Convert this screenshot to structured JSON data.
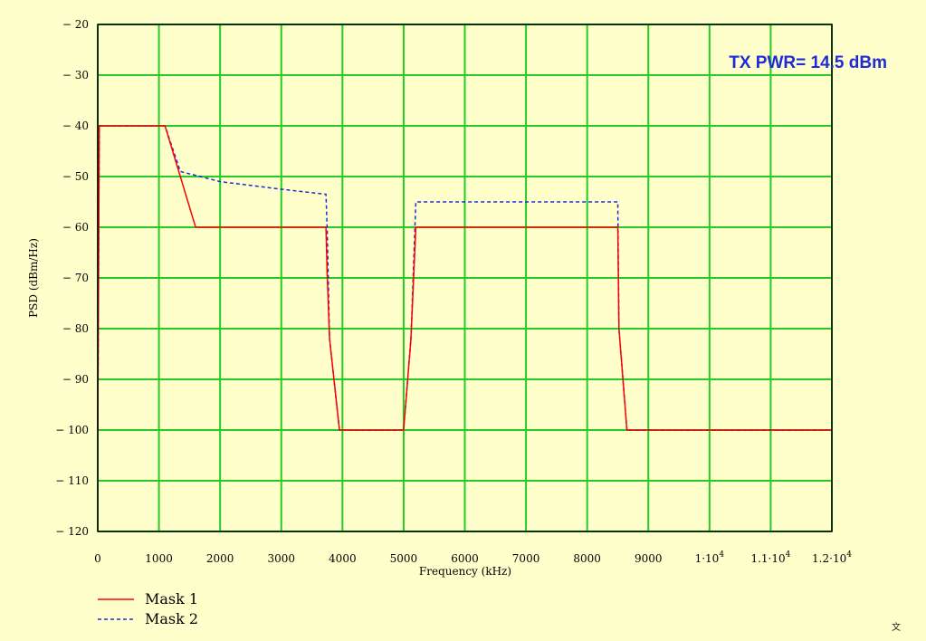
{
  "chart_data": {
    "type": "line",
    "xlabel": "Frequency (kHz)",
    "ylabel": "PSD (dBm/Hz)",
    "xlim": [
      0,
      12000
    ],
    "ylim": [
      -120,
      -20
    ],
    "x_ticks": [
      0,
      1000,
      2000,
      3000,
      4000,
      5000,
      6000,
      7000,
      8000,
      9000,
      10000,
      11000,
      12000
    ],
    "x_tick_labels": [
      "0",
      "1000",
      "2000",
      "3000",
      "4000",
      "5000",
      "6000",
      "7000",
      "8000",
      "9000",
      "1·10",
      "1.1·10",
      "1.2·10"
    ],
    "x_tick_exponents": [
      "",
      "",
      "",
      "",
      "",
      "",
      "",
      "",
      "",
      "",
      "4",
      "4",
      "4"
    ],
    "y_ticks": [
      -20,
      -30,
      -40,
      -50,
      -60,
      -70,
      -80,
      -90,
      -100,
      -110,
      -120
    ],
    "grid": true,
    "grid_color": "#22cc22",
    "legend_position": "bottom-left",
    "annotation": "TX PWR= 14.5 dBm",
    "series": [
      {
        "name": "Mask 1",
        "color": "#ff0000",
        "style": "solid",
        "x": [
          0,
          25,
          1100,
          1600,
          3730,
          3750,
          3790,
          3950,
          5000,
          5120,
          5200,
          8500,
          8520,
          8650,
          12000
        ],
        "y": [
          -100,
          -40,
          -40,
          -60,
          -60,
          -69,
          -82,
          -100,
          -100,
          -82,
          -60,
          -60,
          -80,
          -100,
          -100
        ]
      },
      {
        "name": "Mask 2",
        "color": "#1f2bd6",
        "style": "dashed",
        "x": [
          0,
          25,
          1100,
          1350,
          2000,
          3000,
          3730,
          3750,
          3790,
          3950,
          5000,
          5120,
          5200,
          8500,
          8520,
          8650,
          12000
        ],
        "y": [
          -100,
          -40,
          -40,
          -49,
          -51,
          -52.5,
          -53.5,
          -60,
          -82,
          -100,
          -100,
          -82,
          -55,
          -55,
          -80,
          -100,
          -100
        ]
      }
    ]
  },
  "corner_glyph": "文"
}
